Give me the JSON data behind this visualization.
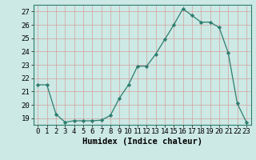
{
  "title": "",
  "xlabel": "Humidex (Indice chaleur)",
  "ylabel": "",
  "x": [
    0,
    1,
    2,
    3,
    4,
    5,
    6,
    7,
    8,
    9,
    10,
    11,
    12,
    13,
    14,
    15,
    16,
    17,
    18,
    19,
    20,
    21,
    22,
    23
  ],
  "y": [
    21.5,
    21.5,
    19.3,
    18.7,
    18.8,
    18.8,
    18.8,
    18.85,
    19.2,
    20.5,
    21.5,
    22.9,
    22.9,
    23.8,
    24.9,
    26.0,
    27.2,
    26.7,
    26.2,
    26.2,
    25.8,
    23.9,
    20.1,
    18.7
  ],
  "line_color": "#2e7d6e",
  "marker": "D",
  "marker_size": 2.2,
  "bg_color": "#cce9e5",
  "grid_color": "#b8d8d4",
  "ylim": [
    18.5,
    27.5
  ],
  "yticks": [
    19,
    20,
    21,
    22,
    23,
    24,
    25,
    26,
    27
  ],
  "xlim": [
    -0.5,
    23.5
  ],
  "xticks": [
    0,
    1,
    2,
    3,
    4,
    5,
    6,
    7,
    8,
    9,
    10,
    11,
    12,
    13,
    14,
    15,
    16,
    17,
    18,
    19,
    20,
    21,
    22,
    23
  ],
  "tick_fontsize": 6.5,
  "xlabel_fontsize": 7.5
}
